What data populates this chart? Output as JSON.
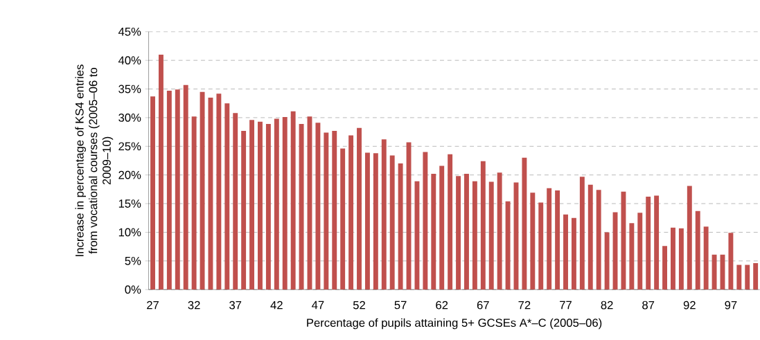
{
  "chart_data": {
    "type": "bar",
    "xlabel": "Percentage of pupils attaining 5+ GCSEs A*–C (2005–06)",
    "ylabel": "Increase in percentage of KS4 entries from vocational courses (2005–06 to 2009–10)",
    "categories": [
      "27",
      null,
      null,
      null,
      null,
      "32",
      null,
      null,
      null,
      null,
      "37",
      null,
      null,
      null,
      null,
      "42",
      null,
      null,
      null,
      null,
      "47",
      null,
      null,
      null,
      null,
      "52",
      null,
      null,
      null,
      null,
      "57",
      null,
      null,
      null,
      null,
      "62",
      null,
      null,
      null,
      null,
      "67",
      null,
      null,
      null,
      null,
      "72",
      null,
      null,
      null,
      null,
      "77",
      null,
      null,
      null,
      null,
      "82",
      null,
      null,
      null,
      null,
      "87",
      null,
      null,
      null,
      null,
      "92",
      null,
      null,
      null,
      null,
      "97",
      null,
      null,
      null
    ],
    "values": [
      33.7,
      41,
      34.7,
      34.9,
      35.7,
      30.2,
      34.5,
      33.5,
      34.2,
      32.5,
      30.8,
      27.7,
      29.6,
      29.3,
      28.9,
      29.8,
      30.1,
      31.1,
      28.9,
      30.2,
      29.1,
      27.4,
      27.7,
      24.6,
      26.9,
      28.2,
      23.9,
      23.8,
      26.2,
      23.4,
      22.0,
      25.7,
      18.9,
      24.0,
      20.2,
      21.6,
      23.6,
      19.8,
      20.2,
      18.9,
      22.4,
      18.8,
      20.4,
      15.4,
      18.7,
      23.0,
      16.9,
      15.2,
      17.7,
      17.3,
      13.1,
      12.5,
      19.7,
      18.3,
      17.4,
      10.0,
      13.5,
      17.1,
      11.6,
      13.4,
      16.2,
      16.4,
      7.6,
      10.8,
      10.7,
      18.1,
      13.7,
      11.0,
      6.1,
      6.1,
      9.9,
      4.3,
      4.3,
      4.6
    ],
    "color": "#c0504d",
    "ylim": [
      0,
      45
    ],
    "yticks": [
      {
        "value": 0,
        "label": "0%"
      },
      {
        "value": 5,
        "label": "5%"
      },
      {
        "value": 10,
        "label": "10%"
      },
      {
        "value": 15,
        "label": "15%"
      },
      {
        "value": 20,
        "label": "20%"
      },
      {
        "value": 25,
        "label": "25%"
      },
      {
        "value": 30,
        "label": "30%"
      },
      {
        "value": 35,
        "label": "35%"
      },
      {
        "value": 40,
        "label": "40%"
      },
      {
        "value": 45,
        "label": "45%"
      }
    ],
    "grid": "y"
  }
}
